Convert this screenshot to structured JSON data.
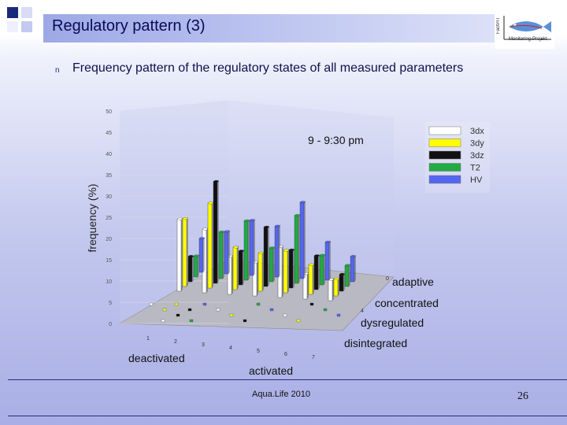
{
  "slide": {
    "title": "Regulatory pattern (3)",
    "subtitle": "Frequency pattern of the regulatory states of all measured parameters",
    "bullet": "n",
    "logo_text": "Monitoring-Projekt",
    "logo_vertical": "FactPIT",
    "footer": "Aqua.Life 2010",
    "page_number": "26"
  },
  "chart_data": {
    "type": "bar",
    "variant": "3d-grouped",
    "ylabel": "frequency (%)",
    "ylim": [
      0,
      50
    ],
    "yticks": [
      "0",
      "5",
      "10",
      "15",
      "20",
      "25",
      "30",
      "35",
      "40",
      "45",
      "50"
    ],
    "time_label": "9 - 9:30 pm",
    "categories": [
      "1",
      "2",
      "3",
      "4",
      "5",
      "6",
      "7"
    ],
    "depth_ticks": [
      "0",
      "4"
    ],
    "region_labels": [
      "deactivated",
      "activated"
    ],
    "depth_labels": [
      "adaptive",
      "concentrated",
      "dysregulated",
      "disintegrated"
    ],
    "legend": [
      {
        "name": "3dx",
        "color": "#ffffff"
      },
      {
        "name": "3dy",
        "color": "#ffff00"
      },
      {
        "name": "3dz",
        "color": "#111111"
      },
      {
        "name": "T2",
        "color": "#22aa44"
      },
      {
        "name": "HV",
        "color": "#5566ee"
      }
    ],
    "series": [
      {
        "name": "3dx",
        "values": [
          17,
          15,
          9,
          8,
          12,
          6,
          5
        ]
      },
      {
        "name": "3dy",
        "values": [
          16,
          20,
          10,
          9,
          10,
          7,
          4
        ]
      },
      {
        "name": "3dz",
        "values": [
          6,
          24,
          8,
          14,
          9,
          8,
          4
        ]
      },
      {
        "name": "T2",
        "values": [
          5,
          11,
          14,
          8,
          16,
          7,
          5
        ]
      },
      {
        "name": "HV",
        "values": [
          8,
          10,
          13,
          12,
          18,
          9,
          6
        ]
      }
    ]
  }
}
